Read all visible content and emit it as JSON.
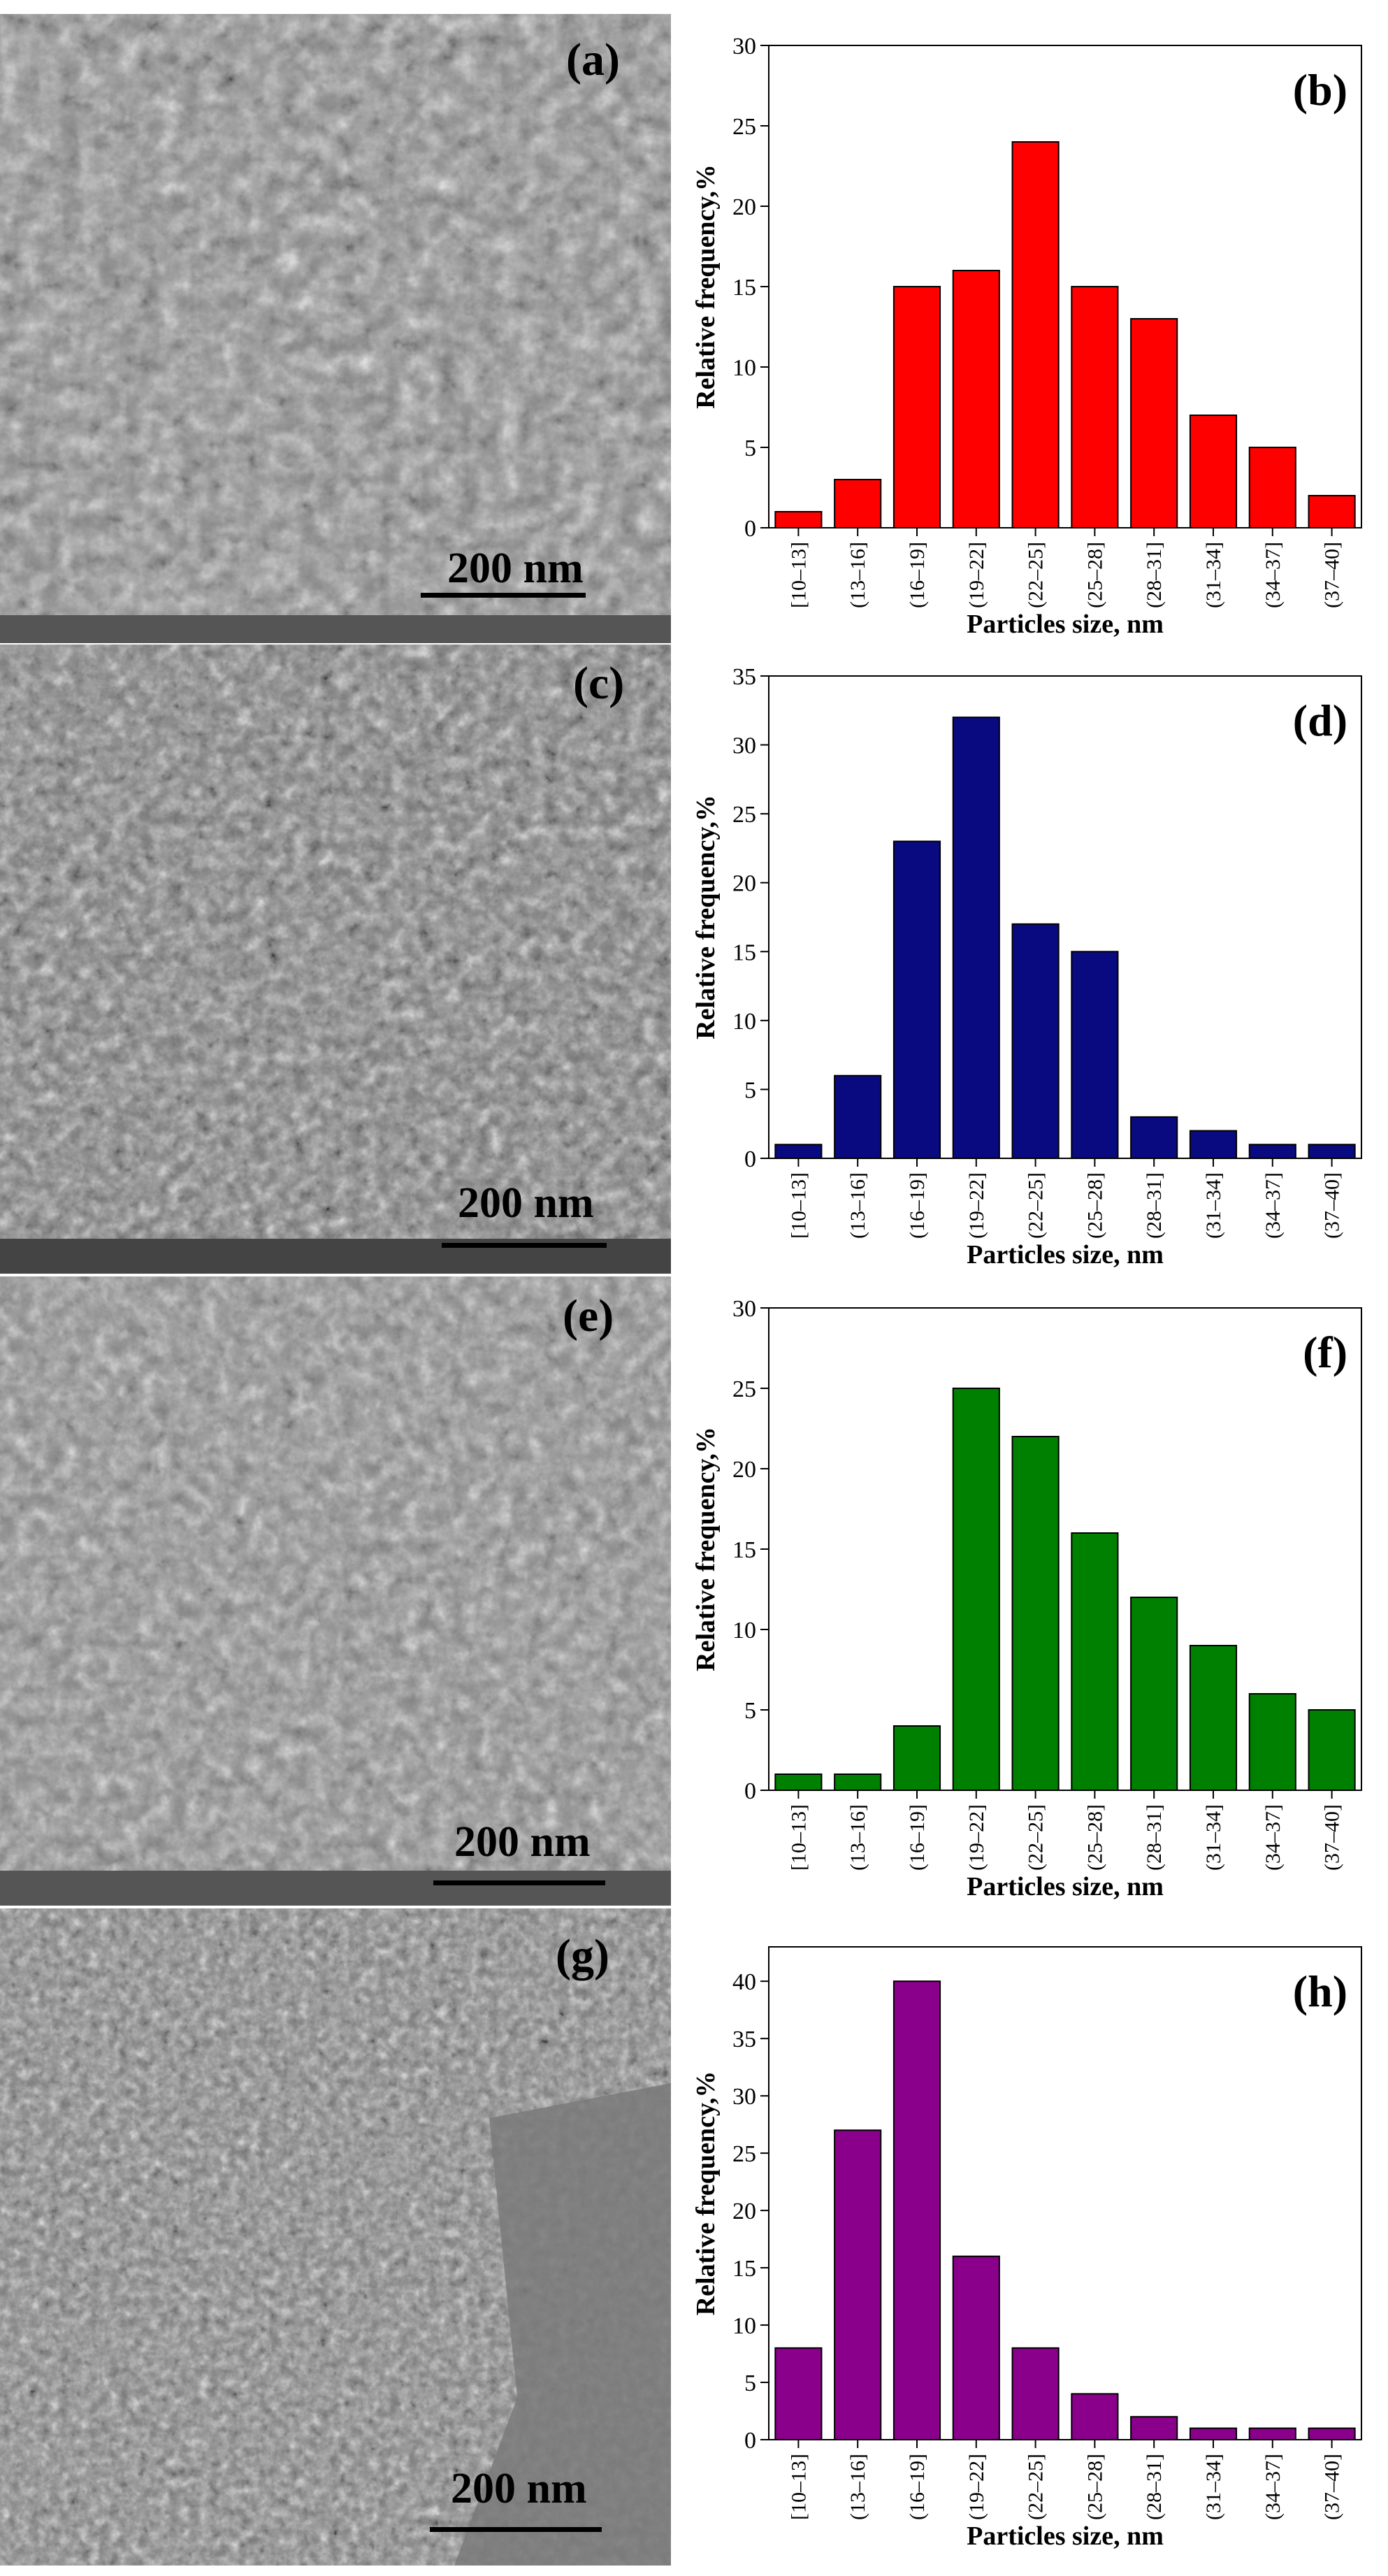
{
  "panels": [
    {
      "sem_label": "(a)",
      "scale_text": "200 nm",
      "chart_label": "(b)",
      "color": "#ff0000"
    },
    {
      "sem_label": "(c)",
      "scale_text": "200 nm",
      "chart_label": "(d)",
      "color": "#0a0a80"
    },
    {
      "sem_label": "(e)",
      "scale_text": "200 nm",
      "chart_label": "(f)",
      "color": "#008000"
    },
    {
      "sem_label": "(g)",
      "scale_text": "200 nm",
      "chart_label": "(h)",
      "color": "#8b008b"
    }
  ],
  "chart_data": [
    {
      "type": "bar",
      "title": "(b)",
      "xlabel": "Particles size, nm",
      "ylabel": "Relative frequency,%",
      "categories": [
        "[10–13]",
        "(13–16]",
        "(16–19]",
        "(19–22]",
        "(22–25]",
        "(25–28]",
        "(28–31]",
        "(31–34]",
        "(34–37]",
        "(37–40]"
      ],
      "values": [
        1,
        3,
        15,
        16,
        24,
        15,
        13,
        7,
        5,
        2
      ],
      "ylim": [
        0,
        30
      ],
      "yticks": [
        0,
        5,
        10,
        15,
        20,
        25,
        30
      ],
      "color": "#ff0000"
    },
    {
      "type": "bar",
      "title": "(d)",
      "xlabel": "Particles size, nm",
      "ylabel": "Relative frequency,%",
      "categories": [
        "[10–13]",
        "(13–16]",
        "(16–19]",
        "(19–22]",
        "(22–25]",
        "(25–28]",
        "(28–31]",
        "(31–34]",
        "(34–37]",
        "(37–40]"
      ],
      "values": [
        1,
        6,
        23,
        32,
        17,
        15,
        3,
        2,
        1,
        1
      ],
      "ylim": [
        0,
        35
      ],
      "yticks": [
        0,
        5,
        10,
        15,
        20,
        25,
        30,
        35
      ],
      "color": "#0a0a80"
    },
    {
      "type": "bar",
      "title": "(f)",
      "xlabel": "Particles size, nm",
      "ylabel": "Relative frequency,%",
      "categories": [
        "[10–13]",
        "(13–16]",
        "(16–19]",
        "(19–22]",
        "(22–25]",
        "(25–28]",
        "(28–31]",
        "(31–34]",
        "(34–37]",
        "(37–40]"
      ],
      "values": [
        1,
        1,
        4,
        25,
        22,
        16,
        12,
        9,
        6,
        5
      ],
      "ylim": [
        0,
        30
      ],
      "yticks": [
        0,
        5,
        10,
        15,
        20,
        25,
        30
      ],
      "color": "#008000"
    },
    {
      "type": "bar",
      "title": "(h)",
      "xlabel": "Particles size, nm",
      "ylabel": "Relative frequency,%",
      "categories": [
        "[10–13]",
        "(13–16]",
        "(16–19]",
        "(19–22]",
        "(22–25]",
        "(25–28]",
        "(28–31]",
        "(31–34]",
        "(34–37]",
        "(37–40]"
      ],
      "values": [
        8,
        27,
        40,
        16,
        8,
        4,
        2,
        1,
        1,
        1
      ],
      "ylim": [
        0,
        43
      ],
      "yticks": [
        0,
        5,
        10,
        15,
        20,
        25,
        30,
        35,
        40
      ],
      "color": "#8b008b"
    }
  ]
}
